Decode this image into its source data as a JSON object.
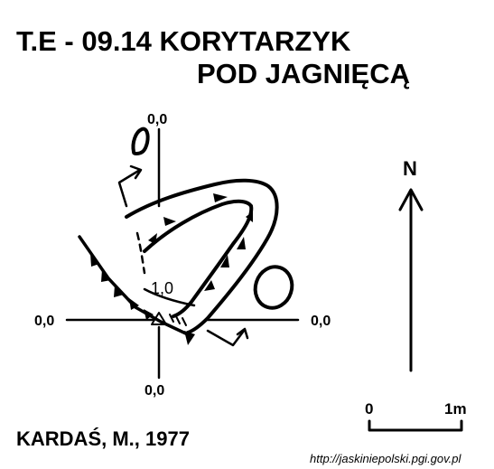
{
  "title": {
    "line1": "T.E - 09.14  KORYTARZYK",
    "line2": "POD JAGNIĘCĄ"
  },
  "survey": {
    "depth_top": "0,0",
    "depth_left": "0,0",
    "depth_right": "0,0",
    "depth_bottom": "0,0",
    "depth_entrance": "1,0"
  },
  "north_label": "N",
  "scale": {
    "start_label": "0",
    "end_label": "1m"
  },
  "author": "KARDAŚ, M., 1977",
  "source": "http://jaskiniepolski.pgi.gov.pl",
  "colors": {
    "ink": "#000000",
    "background": "#ffffff"
  }
}
